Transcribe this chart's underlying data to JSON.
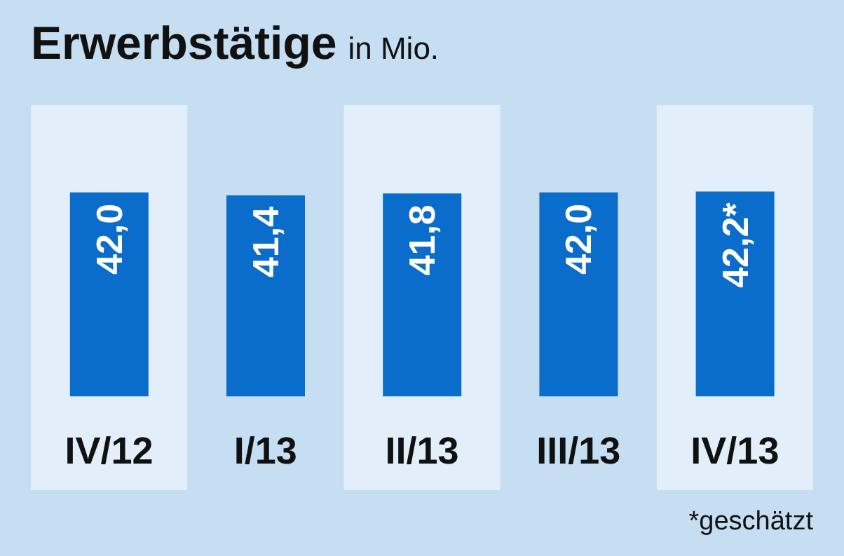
{
  "chart_data": {
    "type": "bar",
    "title": "Erwerbstätige",
    "subtitle": "in Mio.",
    "categories": [
      "IV/12",
      "I/13",
      "II/13",
      "III/13",
      "IV/13"
    ],
    "values": [
      42.0,
      41.4,
      41.8,
      42.0,
      42.2
    ],
    "value_labels": [
      "42,0",
      "41,4",
      "41,8",
      "42,0",
      "42,2*"
    ],
    "color": "#0b6dcb",
    "grid": false,
    "legend": false,
    "bands": [
      {
        "axis": "x",
        "from": "IV/12",
        "to": "IV/12",
        "color": "#e2eef9"
      },
      {
        "axis": "x",
        "from": "II/13",
        "to": "II/13",
        "color": "#e2eef9"
      },
      {
        "axis": "x",
        "from": "IV/13",
        "to": "IV/13",
        "color": "#e2eef9"
      }
    ],
    "annotations": [
      "*geschätzt"
    ]
  }
}
